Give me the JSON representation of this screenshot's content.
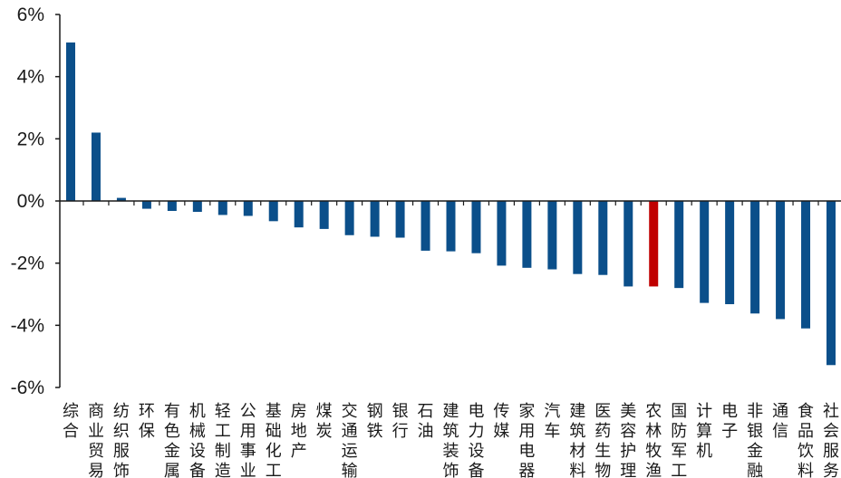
{
  "chart_data": {
    "type": "bar",
    "title": "",
    "xlabel": "",
    "ylabel": "",
    "ylim": [
      -6,
      6
    ],
    "yticks": [
      6,
      4,
      2,
      0,
      -2,
      -4,
      -6
    ],
    "ytick_labels": [
      "6%",
      "4%",
      "2%",
      "0%",
      "-2%",
      "-4%",
      "-6%"
    ],
    "grid": false,
    "legend": "none",
    "colors": {
      "default": "#0B4F8A",
      "highlight": "#C00000",
      "axis": "#1a1a1a"
    },
    "highlight_category": "农林牧渔",
    "categories": [
      "综合",
      "商业贸易",
      "纺织服饰",
      "环保",
      "有色金属",
      "机械设备",
      "轻工制造",
      "公用事业",
      "基础化工",
      "房地产",
      "煤炭",
      "交通运输",
      "钢铁",
      "银行",
      "石油",
      "建筑装饰",
      "电力设备",
      "传媒",
      "家用电器",
      "汽车",
      "建筑材料",
      "医药生物",
      "美容护理",
      "农林牧渔",
      "国防军工",
      "计算机",
      "电子",
      "非银金融",
      "通信",
      "食品饮料",
      "社会服务"
    ],
    "values": [
      5.1,
      2.2,
      0.1,
      -0.25,
      -0.32,
      -0.35,
      -0.45,
      -0.48,
      -0.65,
      -0.85,
      -0.9,
      -1.1,
      -1.15,
      -1.18,
      -1.6,
      -1.62,
      -1.68,
      -2.08,
      -2.15,
      -2.2,
      -2.35,
      -2.38,
      -2.75,
      -2.75,
      -2.8,
      -3.28,
      -3.32,
      -3.62,
      -3.8,
      -4.1,
      -5.28
    ]
  }
}
